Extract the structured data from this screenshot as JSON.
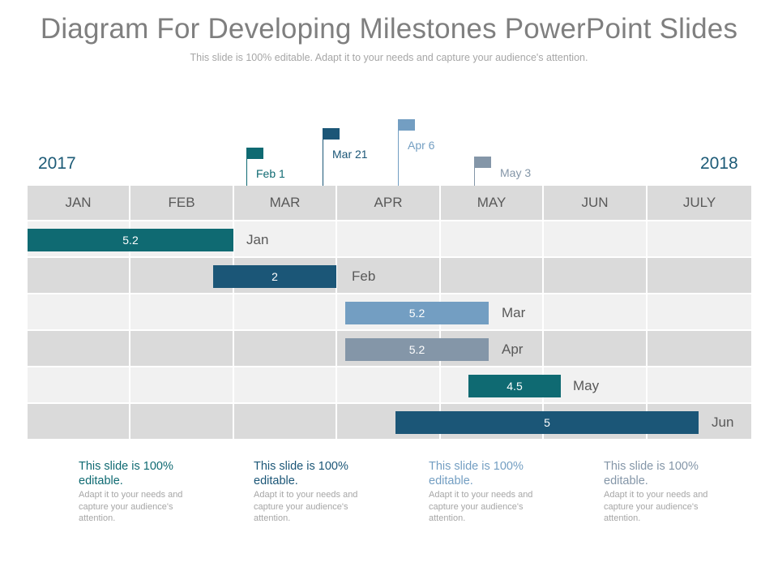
{
  "header": {
    "title": "Diagram For Developing Milestones PowerPoint Slides",
    "subtitle": "This slide is 100% editable. Adapt it to your needs and capture your audience's attention."
  },
  "years": {
    "start": "2017",
    "end": "2018"
  },
  "colors": {
    "teal": "#0f6a72",
    "navy": "#1b5677",
    "lightblue": "#739ec2",
    "slate": "#8496a8",
    "header_bg": "#dadada",
    "row_light": "#f1f1f1",
    "row_dark": "#dadada",
    "text_gray": "#595959",
    "title_gray": "#7f7f7f"
  },
  "milestones": [
    {
      "label": "Feb 1",
      "color": "#0f6a72"
    },
    {
      "label": "Mar 21",
      "color": "#1b5677"
    },
    {
      "label": "Apr 6",
      "color": "#739ec2"
    },
    {
      "label": "May 3",
      "color": "#8496a8"
    }
  ],
  "months": [
    "JAN",
    "FEB",
    "MAR",
    "APR",
    "MAY",
    "JUN",
    "JULY"
  ],
  "bars": [
    {
      "value": "5.2",
      "label": "Jan",
      "color": "#0f6a72"
    },
    {
      "value": "2",
      "label": "Feb",
      "color": "#1b5677"
    },
    {
      "value": "5.2",
      "label": "Mar",
      "color": "#739ec2"
    },
    {
      "value": "5.2",
      "label": "Apr",
      "color": "#8496a8"
    },
    {
      "value": "4.5",
      "label": "May",
      "color": "#0f6a72"
    },
    {
      "value": "5",
      "label": "Jun",
      "color": "#1b5677"
    }
  ],
  "notes": [
    {
      "heading": "This slide is 100% editable.",
      "body": "Adapt it to your needs and capture your audience's attention.",
      "color": "#0f6a72"
    },
    {
      "heading": "This slide is 100% editable.",
      "body": "Adapt it to your needs and capture your audience's attention.",
      "color": "#1b5677"
    },
    {
      "heading": "This slide is 100% editable.",
      "body": "Adapt it to your needs and capture your audience's attention.",
      "color": "#739ec2"
    },
    {
      "heading": "This slide is 100% editable.",
      "body": "Adapt it to your needs and capture your audience's attention.",
      "color": "#8496a8"
    }
  ]
}
